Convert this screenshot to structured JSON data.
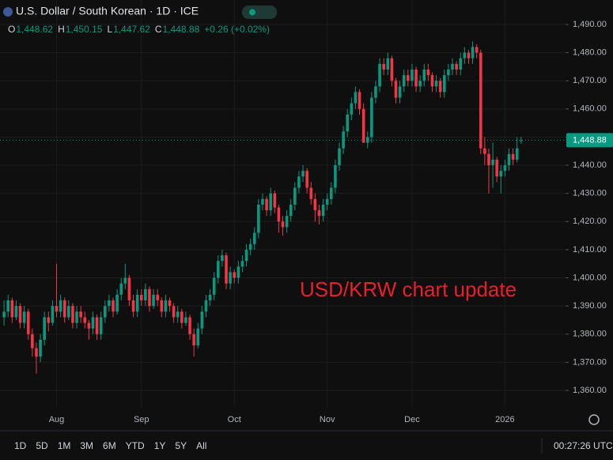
{
  "chart_data": {
    "type": "candlestick",
    "title": "U.S. Dollar / South Korean · 1D · ICE",
    "ohlc_header": [
      "O",
      "1,448.62",
      "H",
      "1,450.15",
      "L",
      "1,447.62",
      "C",
      "1,448.88",
      "+0.26 (+0.02%)"
    ],
    "annotation": "USD/KRW chart update",
    "last_price_label": "1,448.88",
    "up_color": "#089981",
    "down_color": "#f23645",
    "xlim": [
      -1,
      139
    ],
    "xticks": [
      {
        "value": 13,
        "label": "Aug"
      },
      {
        "value": 34,
        "label": "Sep"
      },
      {
        "value": 57,
        "label": "Oct"
      },
      {
        "value": 80,
        "label": "Nov"
      },
      {
        "value": 101,
        "label": "Dec"
      },
      {
        "value": 124,
        "label": "2026"
      }
    ],
    "ylim": [
      1354.1,
      1498.7
    ],
    "yticks": [
      {
        "value": 1360,
        "label": "1,360.00"
      },
      {
        "value": 1370,
        "label": "1,370.00"
      },
      {
        "value": 1380,
        "label": "1,380.00"
      },
      {
        "value": 1390,
        "label": "1,390.00"
      },
      {
        "value": 1400,
        "label": "1,400.00"
      },
      {
        "value": 1410,
        "label": "1,410.00"
      },
      {
        "value": 1420,
        "label": "1,420.00"
      },
      {
        "value": 1430,
        "label": "1,430.00"
      },
      {
        "value": 1440,
        "label": "1,440.00"
      },
      {
        "value": 1450,
        "label": "1,450.00"
      },
      {
        "value": 1460,
        "label": "1,460.00"
      },
      {
        "value": 1470,
        "label": "1,470.00"
      },
      {
        "value": 1480,
        "label": "1,480.00"
      },
      {
        "value": 1490,
        "label": "1,490.00"
      }
    ],
    "grid": true,
    "candles": [
      [
        1386,
        1392,
        1383,
        1388
      ],
      [
        1388,
        1394,
        1386,
        1392
      ],
      [
        1392,
        1393,
        1384,
        1386
      ],
      [
        1386,
        1392,
        1385,
        1390
      ],
      [
        1390,
        1391,
        1382,
        1384
      ],
      [
        1384,
        1390,
        1382,
        1388
      ],
      [
        1388,
        1389,
        1378,
        1380
      ],
      [
        1380,
        1382,
        1372,
        1375
      ],
      [
        1375,
        1377,
        1366,
        1372
      ],
      [
        1372,
        1380,
        1370,
        1378
      ],
      [
        1378,
        1388,
        1376,
        1386
      ],
      [
        1386,
        1388,
        1381,
        1384
      ],
      [
        1384,
        1392,
        1383,
        1390
      ],
      [
        1390,
        1405,
        1386,
        1388
      ],
      [
        1388,
        1394,
        1386,
        1392
      ],
      [
        1392,
        1393,
        1384,
        1386
      ],
      [
        1386,
        1392,
        1385,
        1390
      ],
      [
        1390,
        1391,
        1382,
        1384
      ],
      [
        1384,
        1390,
        1382,
        1388
      ],
      [
        1388,
        1390,
        1384,
        1386
      ],
      [
        1386,
        1388,
        1382,
        1384
      ],
      [
        1384,
        1385,
        1378,
        1382
      ],
      [
        1382,
        1388,
        1380,
        1386
      ],
      [
        1386,
        1387,
        1378,
        1380
      ],
      [
        1380,
        1388,
        1378,
        1386
      ],
      [
        1386,
        1392,
        1384,
        1390
      ],
      [
        1390,
        1394,
        1388,
        1392
      ],
      [
        1392,
        1393,
        1386,
        1388
      ],
      [
        1388,
        1396,
        1387,
        1394
      ],
      [
        1394,
        1400,
        1392,
        1398
      ],
      [
        1398,
        1405,
        1396,
        1400
      ],
      [
        1400,
        1401,
        1390,
        1392
      ],
      [
        1392,
        1394,
        1386,
        1388
      ],
      [
        1388,
        1396,
        1386,
        1394
      ],
      [
        1394,
        1396,
        1390,
        1392
      ],
      [
        1392,
        1398,
        1390,
        1396
      ],
      [
        1396,
        1397,
        1388,
        1390
      ],
      [
        1390,
        1396,
        1389,
        1394
      ],
      [
        1394,
        1396,
        1390,
        1392
      ],
      [
        1392,
        1393,
        1386,
        1388
      ],
      [
        1388,
        1394,
        1386,
        1392
      ],
      [
        1392,
        1393,
        1388,
        1390
      ],
      [
        1390,
        1391,
        1384,
        1386
      ],
      [
        1386,
        1390,
        1384,
        1388
      ],
      [
        1388,
        1389,
        1382,
        1384
      ],
      [
        1384,
        1388,
        1383,
        1386
      ],
      [
        1386,
        1387,
        1378,
        1380
      ],
      [
        1380,
        1382,
        1372,
        1376
      ],
      [
        1376,
        1384,
        1375,
        1382
      ],
      [
        1382,
        1390,
        1380,
        1388
      ],
      [
        1388,
        1394,
        1386,
        1392
      ],
      [
        1392,
        1396,
        1390,
        1394
      ],
      [
        1394,
        1402,
        1392,
        1400
      ],
      [
        1400,
        1408,
        1398,
        1406
      ],
      [
        1406,
        1410,
        1404,
        1408
      ],
      [
        1408,
        1409,
        1396,
        1398
      ],
      [
        1398,
        1404,
        1396,
        1402
      ],
      [
        1402,
        1403,
        1398,
        1400
      ],
      [
        1400,
        1406,
        1398,
        1404
      ],
      [
        1404,
        1408,
        1402,
        1406
      ],
      [
        1406,
        1412,
        1404,
        1410
      ],
      [
        1410,
        1414,
        1408,
        1412
      ],
      [
        1412,
        1418,
        1410,
        1416
      ],
      [
        1416,
        1428,
        1414,
        1426
      ],
      [
        1426,
        1430,
        1424,
        1428
      ],
      [
        1428,
        1429,
        1422,
        1424
      ],
      [
        1424,
        1432,
        1422,
        1430
      ],
      [
        1430,
        1431,
        1423,
        1425
      ],
      [
        1425,
        1426,
        1416,
        1420
      ],
      [
        1420,
        1422,
        1415,
        1418
      ],
      [
        1418,
        1424,
        1416,
        1422
      ],
      [
        1422,
        1428,
        1420,
        1426
      ],
      [
        1426,
        1434,
        1424,
        1432
      ],
      [
        1432,
        1438,
        1430,
        1436
      ],
      [
        1436,
        1440,
        1434,
        1438
      ],
      [
        1438,
        1439,
        1430,
        1432
      ],
      [
        1432,
        1434,
        1426,
        1428
      ],
      [
        1428,
        1430,
        1420,
        1424
      ],
      [
        1424,
        1426,
        1419,
        1422
      ],
      [
        1422,
        1428,
        1420,
        1426
      ],
      [
        1426,
        1430,
        1424,
        1428
      ],
      [
        1428,
        1434,
        1426,
        1432
      ],
      [
        1432,
        1442,
        1430,
        1440
      ],
      [
        1440,
        1448,
        1438,
        1446
      ],
      [
        1446,
        1454,
        1444,
        1452
      ],
      [
        1452,
        1460,
        1450,
        1458
      ],
      [
        1458,
        1464,
        1456,
        1462
      ],
      [
        1462,
        1468,
        1460,
        1466
      ],
      [
        1466,
        1467,
        1458,
        1460
      ],
      [
        1460,
        1462,
        1448,
        1448
      ],
      [
        1448,
        1452,
        1446,
        1450
      ],
      [
        1450,
        1466,
        1448,
        1464
      ],
      [
        1464,
        1470,
        1462,
        1468
      ],
      [
        1468,
        1478,
        1466,
        1476
      ],
      [
        1476,
        1478,
        1472,
        1474
      ],
      [
        1474,
        1480,
        1472,
        1478
      ],
      [
        1478,
        1479,
        1468,
        1470
      ],
      [
        1470,
        1471,
        1462,
        1464
      ],
      [
        1464,
        1470,
        1462,
        1468
      ],
      [
        1468,
        1474,
        1466,
        1472
      ],
      [
        1472,
        1474,
        1468,
        1470
      ],
      [
        1470,
        1476,
        1468,
        1474
      ],
      [
        1474,
        1475,
        1466,
        1468
      ],
      [
        1468,
        1472,
        1466,
        1470
      ],
      [
        1470,
        1476,
        1468,
        1474
      ],
      [
        1474,
        1476,
        1470,
        1472
      ],
      [
        1472,
        1473,
        1466,
        1468
      ],
      [
        1468,
        1472,
        1466,
        1470
      ],
      [
        1470,
        1471,
        1464,
        1466
      ],
      [
        1466,
        1474,
        1464,
        1472
      ],
      [
        1472,
        1476,
        1470,
        1474
      ],
      [
        1474,
        1478,
        1472,
        1476
      ],
      [
        1476,
        1477,
        1472,
        1474
      ],
      [
        1474,
        1480,
        1472,
        1478
      ],
      [
        1478,
        1482,
        1476,
        1480
      ],
      [
        1480,
        1481,
        1476,
        1478
      ],
      [
        1478,
        1484,
        1476,
        1482
      ],
      [
        1482,
        1483,
        1478,
        1480
      ],
      [
        1480,
        1481,
        1444,
        1446
      ],
      [
        1446,
        1450,
        1440,
        1444
      ],
      [
        1444,
        1446,
        1430,
        1440
      ],
      [
        1440,
        1448,
        1432,
        1442
      ],
      [
        1442,
        1443,
        1434,
        1436
      ],
      [
        1436,
        1440,
        1430,
        1438
      ],
      [
        1438,
        1442,
        1436,
        1440
      ],
      [
        1440,
        1446,
        1438,
        1444
      ],
      [
        1444,
        1446,
        1440,
        1442
      ],
      [
        1442,
        1450,
        1441,
        1446
      ],
      [
        1448.62,
        1450.15,
        1447.62,
        1448.88
      ]
    ]
  },
  "toolbar": {
    "ranges": [
      "1D",
      "5D",
      "1M",
      "3M",
      "6M",
      "YTD",
      "1Y",
      "5Y",
      "All"
    ],
    "clock": "00:27:26 UTC"
  }
}
